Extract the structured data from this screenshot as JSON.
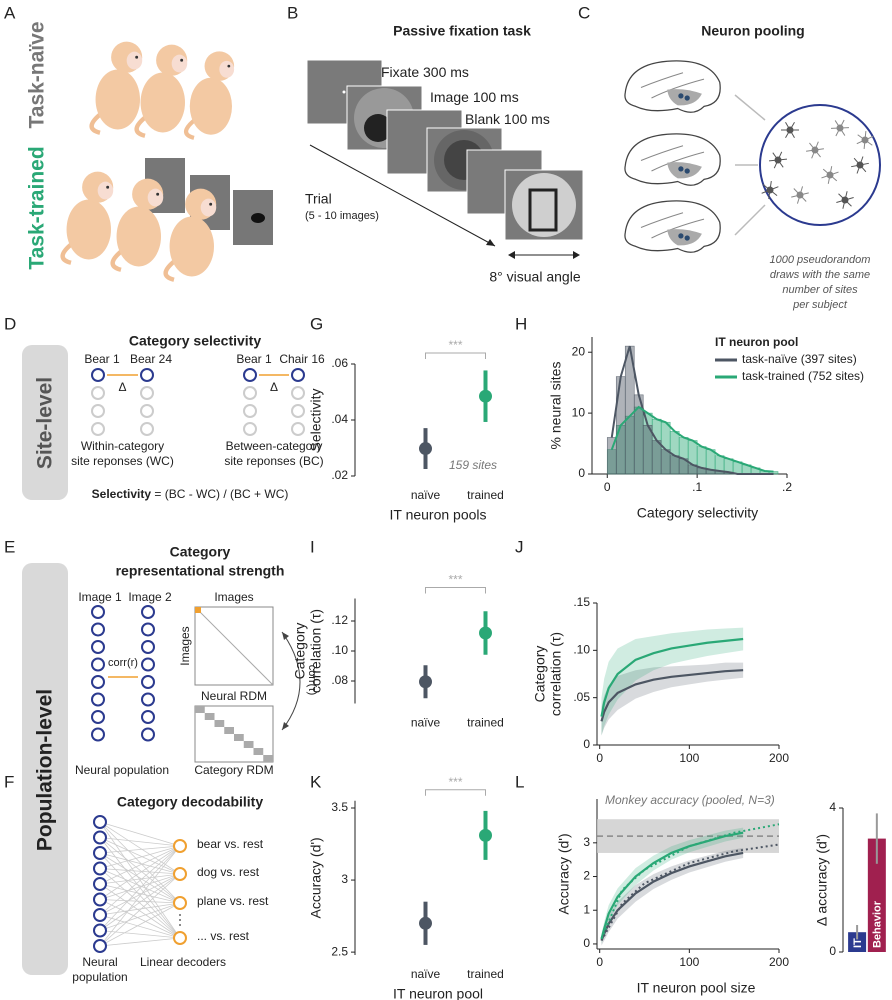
{
  "panels": {
    "A": {
      "letter": "A",
      "naive": "Task-naïve",
      "trained": "Task-trained"
    },
    "B": {
      "letter": "B",
      "title": "Passive fixation task",
      "steps": [
        {
          "name": "Fixate",
          "duration": "300 ms"
        },
        {
          "name": "Image",
          "duration": "100 ms"
        },
        {
          "name": "Blank",
          "duration": "100 ms"
        }
      ],
      "trial": "Trial",
      "trial_note": "(5 - 10 images)",
      "angle": "8° visual angle"
    },
    "C": {
      "letter": "C",
      "title": "Neuron pooling",
      "note": [
        "1000 pseudorandom",
        "draws with the same",
        "number of sites",
        "per subject"
      ]
    },
    "D": {
      "letter": "D",
      "title": "Category selectivity",
      "side": "Site-level",
      "pairs": [
        {
          "left": "Bear 1",
          "right": "Bear 24",
          "delta": "Δ",
          "caption": [
            "Within-category",
            "site reponses  (WC)"
          ]
        },
        {
          "left": "Bear 1",
          "right": "Chair 16",
          "delta": "Δ",
          "caption": [
            "Between-category",
            "site reponses (BC)"
          ]
        }
      ],
      "formula_name": "Selectivity",
      "formula": "= (BC - WC) / (BC + WC)"
    },
    "E": {
      "letter": "E",
      "side": "Population-level",
      "title": [
        "Category",
        "representational strength"
      ],
      "image1": "Image 1",
      "image2": "Image 2",
      "images_top": "Images",
      "images_side": "Images",
      "corr_r": "corr(r)",
      "neural_rdm": "Neural RDM",
      "corr_tau": "corr(τ)",
      "category_rdm": "Category RDM",
      "population": "Neural population"
    },
    "F": {
      "letter": "F",
      "title": "Category decodability",
      "decoders": [
        "bear vs. rest",
        "dog vs. rest",
        "plane vs. rest",
        "... vs. rest"
      ],
      "population": [
        "Neural",
        "population"
      ],
      "decoders_label": "Linear decoders"
    }
  },
  "chart_data": [
    {
      "letter": "G",
      "type": "pointrange",
      "categories": [
        "naïve",
        "trained"
      ],
      "values": [
        0.0298,
        0.0485
      ],
      "errors": [
        0.0073,
        0.0092
      ],
      "colors": [
        "#4d5663",
        "#2aa876"
      ],
      "ylim": [
        0.02,
        0.06
      ],
      "yticks": [
        {
          "value": 0.02,
          "label": ".02"
        },
        {
          "value": 0.04,
          "label": ".04"
        },
        {
          "value": 0.06,
          "label": ".06"
        }
      ],
      "ylabel": [
        "Selectivity"
      ],
      "xlabel": "IT neuron pools",
      "significance": "***",
      "annotation": "159 sites"
    },
    {
      "letter": "H",
      "type": "histogram",
      "bins": [
        0,
        0.01,
        0.02,
        0.03,
        0.04,
        0.05,
        0.06,
        0.07,
        0.08,
        0.09,
        0.1,
        0.11,
        0.12,
        0.13,
        0.14,
        0.15,
        0.16,
        0.17,
        0.18,
        0.19
      ],
      "series": [
        {
          "name": "task-naïve (397 sites)",
          "color": "#4d5663",
          "values": [
            6,
            16,
            21,
            13,
            8,
            5.5,
            4,
            3,
            2.5,
            1.5,
            1,
            0.7,
            0.5,
            0.3,
            0,
            0,
            0,
            0,
            0
          ]
        },
        {
          "name": "task-trained (752 sites)",
          "color": "#2aa876",
          "values": [
            4,
            8,
            9.5,
            11,
            10,
            9,
            8.5,
            7,
            6,
            5.5,
            4.5,
            4,
            3,
            2.5,
            2,
            1.5,
            1,
            0.5,
            0.4
          ]
        }
      ],
      "xlim": [
        -0.017,
        0.2
      ],
      "xticks": [
        0,
        {
          "value": 0.1,
          "label": ".1"
        },
        {
          "value": 0.2,
          "label": ".2"
        }
      ],
      "ylim": [
        0,
        22.5
      ],
      "yticks": [
        0,
        10,
        20
      ],
      "ylabel": [
        "% neural sites"
      ],
      "xlabel": "Category selectivity",
      "legend_title": "IT neuron pool",
      "legend": "upper right"
    },
    {
      "letter": "I",
      "type": "pointrange",
      "categories": [
        "naïve",
        "trained"
      ],
      "values": [
        0.0795,
        0.112
      ],
      "errors": [
        0.011,
        0.0145
      ],
      "colors": [
        "#4d5663",
        "#2aa876"
      ],
      "ylim": [
        0.065,
        0.135
      ],
      "yticks": [
        {
          "value": 0.08,
          "label": ".08"
        },
        {
          "value": 0.1,
          "label": ".10"
        },
        {
          "value": 0.12,
          "label": ".12"
        }
      ],
      "ylabel": [
        "Category",
        "correlation (τ)"
      ],
      "significance": "***"
    },
    {
      "letter": "J",
      "type": "line",
      "x": [
        2,
        5,
        10,
        20,
        40,
        60,
        80,
        100,
        120,
        140,
        160
      ],
      "series": [
        {
          "color": "#4d5663",
          "style": "solid",
          "values": [
            0.025,
            0.035,
            0.045,
            0.055,
            0.064,
            0.069,
            0.072,
            0.074,
            0.076,
            0.078,
            0.079
          ],
          "errors": [
            0.015,
            0.017,
            0.018,
            0.018,
            0.015,
            0.013,
            0.011,
            0.01,
            0.009,
            0.009,
            0.008
          ]
        },
        {
          "color": "#2aa876",
          "style": "solid",
          "values": [
            0.03,
            0.045,
            0.06,
            0.075,
            0.09,
            0.097,
            0.102,
            0.105,
            0.108,
            0.11,
            0.112
          ],
          "errors": [
            0.02,
            0.025,
            0.028,
            0.027,
            0.022,
            0.018,
            0.016,
            0.015,
            0.014,
            0.013,
            0.012
          ]
        }
      ],
      "xlim": [
        -3,
        200
      ],
      "xticks": [
        0,
        100,
        200
      ],
      "ylim": [
        0,
        0.15
      ],
      "yticks": [
        0,
        {
          "value": 0.05,
          "label": ".05"
        },
        {
          "value": 0.1,
          "label": ".10"
        },
        {
          "value": 0.15,
          "label": ".15"
        }
      ],
      "ylabel": [
        "Category",
        "correlation (τ)"
      ]
    },
    {
      "letter": "K",
      "type": "pointrange",
      "categories": [
        "naïve",
        "trained"
      ],
      "values": [
        2.7,
        3.31
      ],
      "errors": [
        0.15,
        0.17
      ],
      "colors": [
        "#4d5663",
        "#2aa876"
      ],
      "ylim": [
        2.48,
        3.55
      ],
      "yticks": [
        2.5,
        3,
        3.5
      ],
      "ylabel": [
        "Accuracy (d')"
      ],
      "xlabel": "IT neuron pool",
      "significance": "***"
    },
    {
      "letter": "L",
      "type": "line",
      "x": [
        2,
        5,
        10,
        20,
        40,
        60,
        80,
        100,
        120,
        140,
        160
      ],
      "series": [
        {
          "color": "#4d5663",
          "style": "solid",
          "values": [
            0.1,
            0.3,
            0.6,
            1.0,
            1.5,
            1.85,
            2.1,
            2.3,
            2.45,
            2.6,
            2.7
          ],
          "errors": [
            0.15,
            0.2,
            0.25,
            0.25,
            0.25,
            0.22,
            0.2,
            0.18,
            0.17,
            0.16,
            0.15
          ]
        },
        {
          "color": "#2aa876",
          "style": "solid",
          "values": [
            0.15,
            0.45,
            0.9,
            1.4,
            2.0,
            2.4,
            2.7,
            2.9,
            3.05,
            3.2,
            3.3
          ],
          "errors": [
            0.15,
            0.2,
            0.25,
            0.25,
            0.25,
            0.22,
            0.2,
            0.18,
            0.17,
            0.16,
            0.15
          ]
        },
        {
          "color": "#4d5663",
          "style": "dotted",
          "x": [
            2,
            25,
            50,
            100,
            150,
            200
          ],
          "values": [
            0.1,
            1.2,
            1.8,
            2.4,
            2.75,
            2.95
          ]
        },
        {
          "color": "#2aa876",
          "style": "dotted",
          "x": [
            2,
            25,
            50,
            100,
            150,
            200
          ],
          "values": [
            0.15,
            1.6,
            2.2,
            2.9,
            3.3,
            3.55
          ]
        }
      ],
      "reference": {
        "label": "Monkey accuracy (pooled, N=3)",
        "value": 3.2,
        "low": 2.7,
        "high": 3.7
      },
      "xlim": [
        -3,
        200
      ],
      "xticks": [
        0,
        100,
        200
      ],
      "ylim": [
        -0.15,
        4.3
      ],
      "yticks": [
        0,
        1,
        2,
        3
      ],
      "ylabel": [
        "Accuracy (d')"
      ],
      "xlabel": "IT neuron pool size"
    },
    {
      "type": "bar",
      "categories": [
        "IT",
        "Behavior"
      ],
      "values": [
        0.55,
        3.15
      ],
      "errors": [
        0.2,
        0.7
      ],
      "colors": [
        "#2b3a8f",
        "#a0204f"
      ],
      "ylim": [
        0,
        4
      ],
      "yticks": [
        0,
        4
      ],
      "ylabel": [
        "Δ accuracy (d')"
      ]
    }
  ]
}
